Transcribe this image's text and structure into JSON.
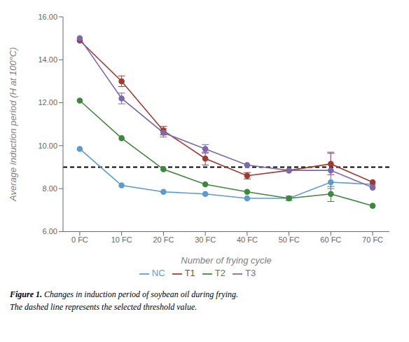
{
  "chart_data": {
    "type": "line",
    "x": [
      0,
      10,
      20,
      30,
      40,
      50,
      60,
      70
    ],
    "xlabel": "Number of frying cycle",
    "ylabel": "Average induction period (H at 100°C)",
    "xlim": [
      -4,
      74
    ],
    "xticks": [
      {
        "value": 0,
        "label": "0 FC"
      },
      {
        "value": 10,
        "label": "10 FC"
      },
      {
        "value": 20,
        "label": "20 FC"
      },
      {
        "value": 30,
        "label": "30 FC"
      },
      {
        "value": 40,
        "label": "40 FC"
      },
      {
        "value": 50,
        "label": "50 FC"
      },
      {
        "value": 60,
        "label": "60 FC"
      },
      {
        "value": 70,
        "label": "70 FC"
      }
    ],
    "ylim": [
      6.0,
      16.0
    ],
    "yticks": [
      {
        "value": 6.0,
        "label": "6.00"
      },
      {
        "value": 8.0,
        "label": "8.00"
      },
      {
        "value": 10.0,
        "label": "10.00"
      },
      {
        "value": 12.0,
        "label": "12.00"
      },
      {
        "value": 14.0,
        "label": "14.00"
      },
      {
        "value": 16.0,
        "label": "16.00"
      }
    ],
    "series": [
      {
        "name": "NC",
        "color": "#5b9bd5",
        "marker": "circle",
        "values": [
          9.85,
          8.15,
          7.85,
          7.75,
          7.55,
          7.55,
          8.3,
          8.2
        ],
        "errors": [
          0,
          0,
          0,
          0,
          0,
          0,
          0,
          0
        ]
      },
      {
        "name": "T1",
        "color": "#a5382c",
        "marker": "circle",
        "values": [
          14.9,
          13.0,
          10.7,
          9.4,
          8.6,
          8.85,
          9.15,
          8.3
        ],
        "errors": [
          0,
          0.25,
          0.2,
          0.3,
          0.15,
          0,
          0.5,
          0
        ]
      },
      {
        "name": "T2",
        "color": "#3a8a3a",
        "marker": "circle",
        "values": [
          12.1,
          10.35,
          8.9,
          8.2,
          7.85,
          7.55,
          7.75,
          7.2
        ],
        "errors": [
          0,
          0,
          0,
          0,
          0,
          0.1,
          0.35,
          0
        ]
      },
      {
        "name": "T3",
        "color": "#7b68ae",
        "marker": "circle",
        "values": [
          15.0,
          12.2,
          10.6,
          9.85,
          9.1,
          8.85,
          8.85,
          8.05
        ],
        "errors": [
          0,
          0.25,
          0.2,
          0.2,
          0,
          0,
          0.85,
          0
        ]
      }
    ],
    "threshold": {
      "value": 9.0,
      "color": "#000000",
      "line_style": "dashed"
    },
    "legend": "bottom",
    "grid": false,
    "caption_bold": "Figure 1.",
    "caption_lines": [
      "Changes in induction period of soybean oil during frying.",
      "The dashed line represents the selected threshold value."
    ]
  }
}
